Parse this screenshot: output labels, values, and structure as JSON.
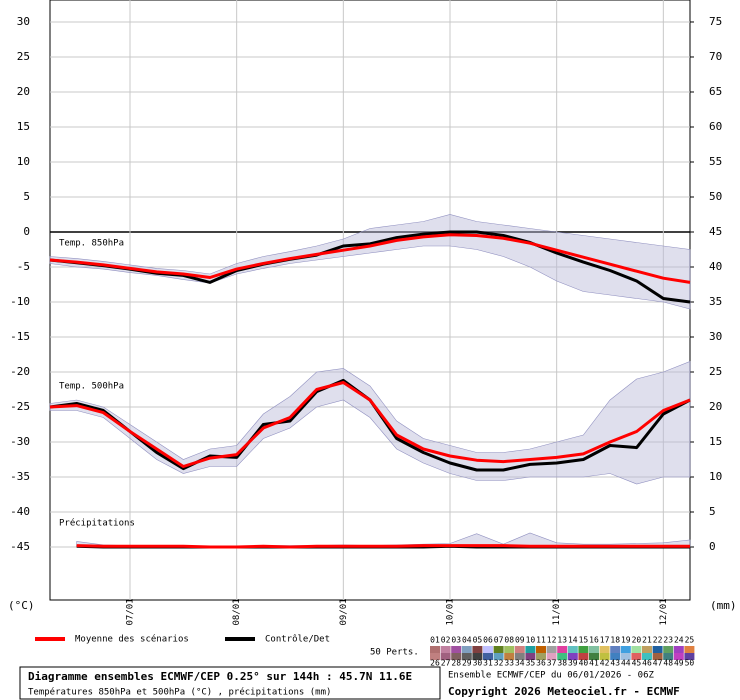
{
  "chart_data": {
    "type": "line",
    "x": [
      0,
      6,
      12,
      18,
      24,
      30,
      36,
      42,
      48,
      54,
      60,
      66,
      72,
      78,
      84,
      90,
      96,
      102,
      108,
      114,
      120,
      126,
      132,
      138,
      144
    ],
    "xlim": [
      0,
      144
    ],
    "xticks": [
      {
        "value": 18,
        "label": "07/01"
      },
      {
        "value": 42,
        "label": "08/01"
      },
      {
        "value": 66,
        "label": "09/01"
      },
      {
        "value": 90,
        "label": "10/01"
      },
      {
        "value": 114,
        "label": "11/01"
      },
      {
        "value": 138,
        "label": "12/01"
      }
    ],
    "ylim": [
      -52.57,
      33.14
    ],
    "yticks": [
      30,
      25,
      20,
      15,
      10,
      5,
      0,
      -5,
      -10,
      -15,
      -20,
      -25,
      -30,
      -35,
      -40,
      -45
    ],
    "y2lim": [
      -7.57,
      78.14
    ],
    "y2ticks": [
      75,
      70,
      65,
      60,
      55,
      50,
      45,
      40,
      35,
      30,
      25,
      20,
      15,
      10,
      5,
      0
    ],
    "ylabel": "(°C)",
    "y2label": "(mm)",
    "grid": true,
    "legend": [
      {
        "name": "Moyenne des scénarios",
        "color": "#ff0000"
      },
      {
        "name": "Contrôle/Det",
        "color": "#000000"
      }
    ],
    "panels": [
      {
        "label": "Temp. 850hPa",
        "series": [
          {
            "values": [
              -4,
              -4.3,
              -4.7,
              -5.2,
              -5.7,
              -6.0,
              -6.5,
              -5.3,
              -4.5,
              -3.8,
              -3.2,
              -2.6,
              -2.0,
              -1.2,
              -0.7,
              -0.4,
              -0.5,
              -0.9,
              -1.6,
              -2.6,
              -3.6,
              -4.6,
              -5.6,
              -6.6,
              -7.2
            ]
          },
          {
            "values": [
              -4,
              -4.4,
              -4.8,
              -5.3,
              -5.9,
              -6.2,
              -7.2,
              -5.5,
              -4.6,
              -3.9,
              -3.3,
              -2.0,
              -1.7,
              -0.8,
              -0.3,
              0,
              0,
              -0.5,
              -1.5,
              -3.0,
              -4.3,
              -5.5,
              -7.0,
              -9.5,
              -10
            ]
          }
        ],
        "range_min": [
          -4.5,
          -5,
          -5.3,
          -5.8,
          -6.2,
          -6.8,
          -7.3,
          -6,
          -5.2,
          -4.5,
          -4,
          -3.5,
          -3,
          -2.5,
          -2,
          -2,
          -2.5,
          -3.5,
          -5,
          -7,
          -8.5,
          -9,
          -9.5,
          -10,
          -11
        ],
        "range_max": [
          -3.5,
          -3.8,
          -4.2,
          -4.7,
          -5.2,
          -5.5,
          -6,
          -4.5,
          -3.5,
          -2.8,
          -2,
          -1,
          0.5,
          1,
          1.5,
          2.5,
          1.5,
          1,
          0.5,
          0,
          -0.5,
          -1,
          -1.5,
          -2,
          -2.5
        ]
      },
      {
        "label": "Temp. 500hPa",
        "series": [
          {
            "values": [
              -25,
              -24.8,
              -25.8,
              -28.5,
              -31,
              -33.5,
              -32.3,
              -31.8,
              -28,
              -26.5,
              -22.5,
              -21.5,
              -24,
              -29,
              -31,
              -32,
              -32.6,
              -32.8,
              -32.5,
              -32.2,
              -31.7,
              -30,
              -28.5,
              -25.5,
              -24
            ]
          },
          {
            "values": [
              -25,
              -24.5,
              -25.5,
              -28.5,
              -31.5,
              -33.8,
              -32,
              -32.2,
              -27.5,
              -27,
              -22.8,
              -21.2,
              -24,
              -29.5,
              -31.5,
              -33,
              -34,
              -34,
              -33.2,
              -33,
              -32.5,
              -30.5,
              -30.8,
              -26,
              -24
            ]
          }
        ],
        "range_min": [
          -25.5,
          -25.5,
          -26.5,
          -29.5,
          -32.5,
          -34.5,
          -33.5,
          -33.5,
          -29.5,
          -28,
          -25,
          -24,
          -26.5,
          -31,
          -33,
          -34.5,
          -35.5,
          -35.5,
          -35,
          -35,
          -35,
          -34.5,
          -36,
          -35,
          -35
        ],
        "range_max": [
          -24.5,
          -24,
          -25,
          -27.5,
          -30,
          -32.5,
          -31,
          -30.5,
          -26,
          -23.5,
          -20,
          -19.5,
          -22,
          -27,
          -29.5,
          -30.5,
          -31.5,
          -31.5,
          -31,
          -30,
          -29,
          -24,
          -21,
          -20,
          -18.5
        ]
      },
      {
        "label": "Précipitations",
        "axis": "y2",
        "series": [
          {
            "values": [
              null,
              0.2,
              0.1,
              0.1,
              0.1,
              0.1,
              0,
              0,
              0.1,
              0,
              0.1,
              0.1,
              0.1,
              0.1,
              0.2,
              0.2,
              0.2,
              0.2,
              0.1,
              0.1,
              0.1,
              0.1,
              0.1,
              0.1,
              0.1
            ]
          },
          {
            "values": [
              null,
              0.1,
              0,
              0,
              0,
              0,
              0,
              0,
              0,
              0,
              0,
              0,
              0,
              0,
              0,
              0.1,
              0,
              0,
              0,
              0,
              0,
              0,
              0,
              0,
              0
            ]
          }
        ],
        "range_min": [
          null,
          0,
          0,
          0,
          0,
          0,
          0,
          0,
          0,
          0,
          0,
          0,
          0,
          0,
          0,
          0,
          0,
          0,
          0,
          0,
          0,
          0,
          0,
          0,
          0
        ],
        "range_max": [
          null,
          0.8,
          0.3,
          0.2,
          0.2,
          0.1,
          0.1,
          0.1,
          0.2,
          0.2,
          0.2,
          0.3,
          0.2,
          0.3,
          0.4,
          0.5,
          1.9,
          0.4,
          2.0,
          0.6,
          0.4,
          0.4,
          0.5,
          0.6,
          1.0
        ]
      }
    ],
    "perturbations_label": "50 Perts.",
    "perturbations": [
      {
        "label": "01",
        "color": "#b07070"
      },
      {
        "label": "02",
        "color": "#c080a0"
      },
      {
        "label": "03",
        "color": "#a050a0"
      },
      {
        "label": "04",
        "color": "#80a0c0"
      },
      {
        "label": "05",
        "color": "#804040"
      },
      {
        "label": "06",
        "color": "#c0c0ff"
      },
      {
        "label": "07",
        "color": "#608020"
      },
      {
        "label": "08",
        "color": "#a0c060"
      },
      {
        "label": "09",
        "color": "#d08080"
      },
      {
        "label": "10",
        "color": "#20a0a0"
      },
      {
        "label": "11",
        "color": "#c06000"
      },
      {
        "label": "12",
        "color": "#a0a0a0"
      },
      {
        "label": "13",
        "color": "#e040a0"
      },
      {
        "label": "14",
        "color": "#60c0c0"
      },
      {
        "label": "15",
        "color": "#40a040"
      },
      {
        "label": "16",
        "color": "#80c0a0"
      },
      {
        "label": "17",
        "color": "#e0c060"
      },
      {
        "label": "18",
        "color": "#6080c0"
      },
      {
        "label": "19",
        "color": "#40a0e0"
      },
      {
        "label": "20",
        "color": "#a0e0a0"
      },
      {
        "label": "21",
        "color": "#c0a060"
      },
      {
        "label": "22",
        "color": "#2060a0"
      },
      {
        "label": "23",
        "color": "#60a060"
      },
      {
        "label": "24",
        "color": "#a040c0"
      },
      {
        "label": "25",
        "color": "#e08040"
      },
      {
        "label": "26",
        "color": "#c08080"
      },
      {
        "label": "27",
        "color": "#a06080"
      },
      {
        "label": "28",
        "color": "#806060"
      },
      {
        "label": "29",
        "color": "#606060"
      },
      {
        "label": "30",
        "color": "#404040"
      },
      {
        "label": "31",
        "color": "#4060a0"
      },
      {
        "label": "32",
        "color": "#60a0c0"
      },
      {
        "label": "33",
        "color": "#c08040"
      },
      {
        "label": "34",
        "color": "#808080"
      },
      {
        "label": "35",
        "color": "#804080"
      },
      {
        "label": "36",
        "color": "#a0a060"
      },
      {
        "label": "37",
        "color": "#e0a0c0"
      },
      {
        "label": "38",
        "color": "#40c080"
      },
      {
        "label": "39",
        "color": "#8040c0"
      },
      {
        "label": "40",
        "color": "#c04040"
      },
      {
        "label": "41",
        "color": "#408040"
      },
      {
        "label": "42",
        "color": "#c0c040"
      },
      {
        "label": "43",
        "color": "#4080c0"
      },
      {
        "label": "44",
        "color": "#a0c0e0"
      },
      {
        "label": "45",
        "color": "#e06060"
      },
      {
        "label": "46",
        "color": "#40c0c0"
      },
      {
        "label": "47",
        "color": "#a06040"
      },
      {
        "label": "48",
        "color": "#408080"
      },
      {
        "label": "49",
        "color": "#c040c0"
      },
      {
        "label": "50",
        "color": "#6040a0"
      }
    ],
    "title": "Diagramme ensembles ECMWF/CEP 0.25° sur 144h : 45.7N 11.6E",
    "subtitle": "Températures 850hPa et 500hPa (°C) , précipitations (mm)",
    "run_info": "Ensemble ECMWF/CEP du 06/01/2026 - 06Z",
    "copyright": "Copyright 2026 Meteociel.fr - ECMWF"
  }
}
